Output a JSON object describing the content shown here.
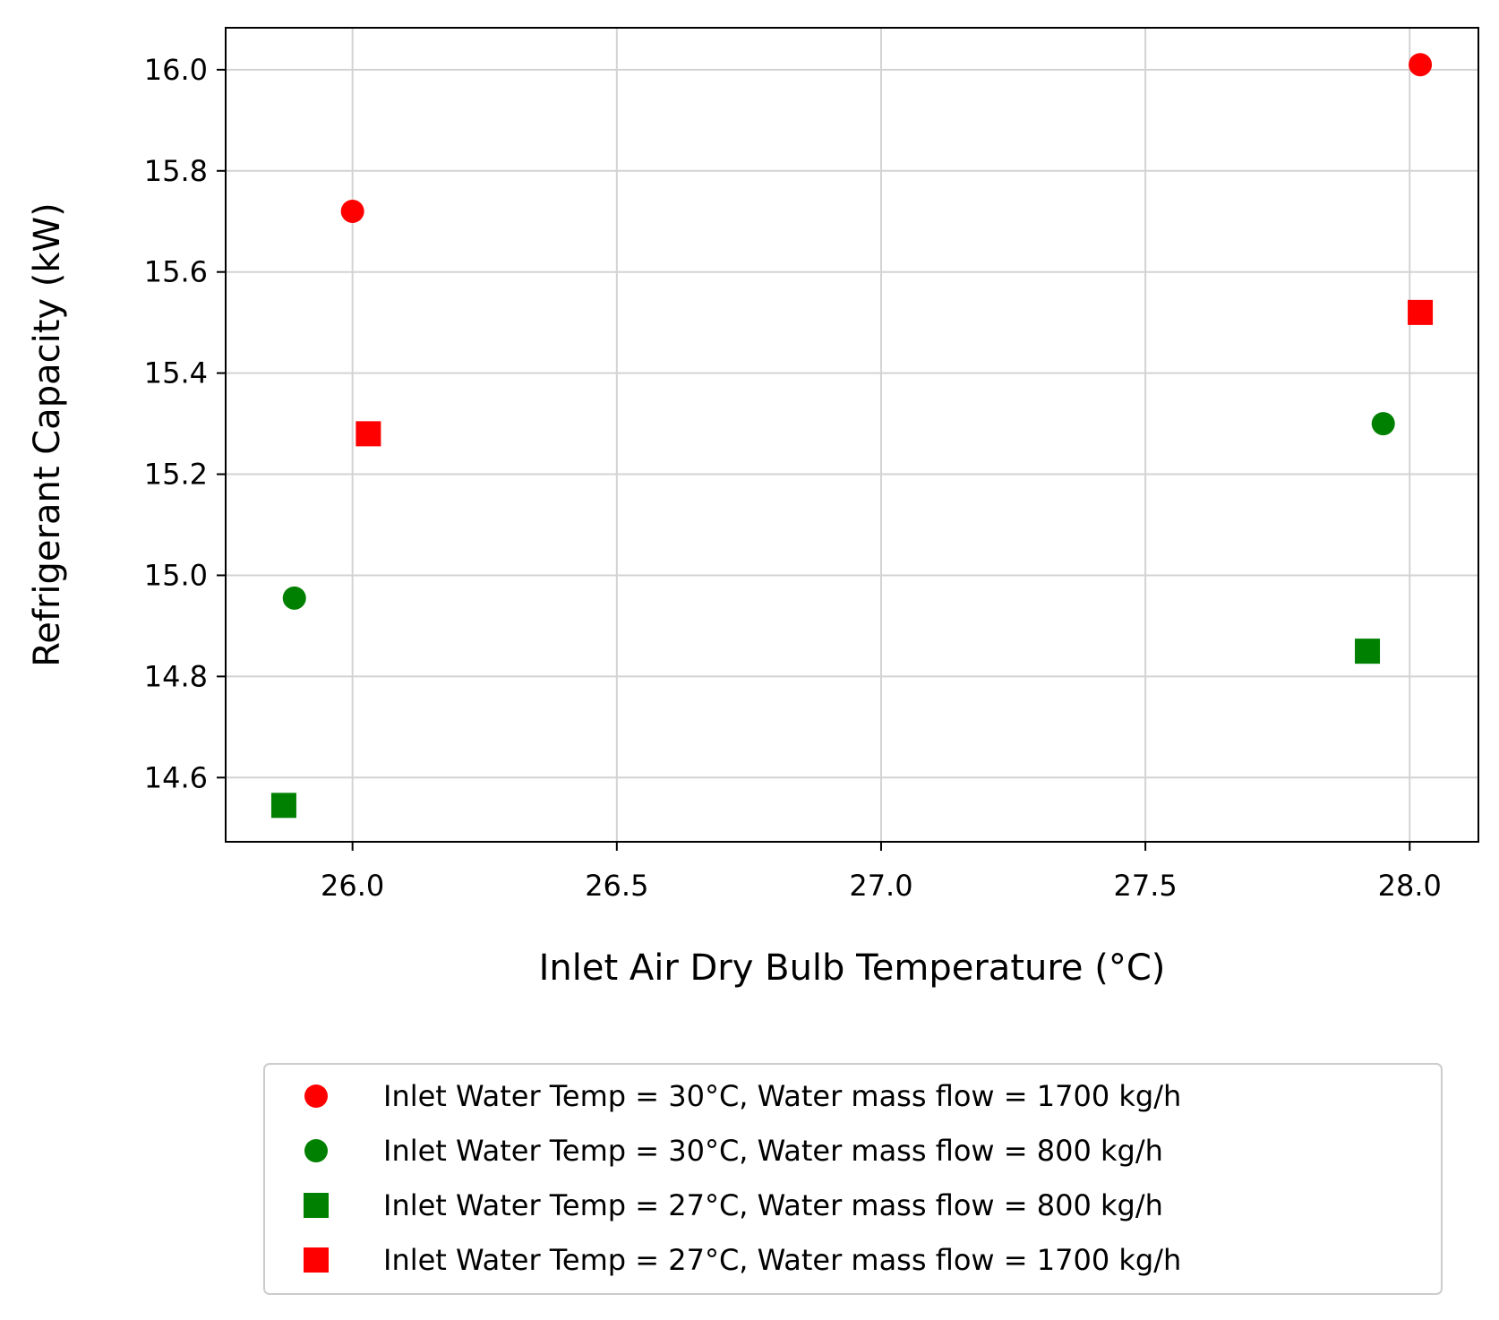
{
  "chart_data": {
    "type": "scatter",
    "title": "",
    "xlabel": "Inlet Air Dry Bulb Temperature (°C)",
    "ylabel": "Refrigerant Capacity (kW)",
    "xlim": [
      25.76,
      28.13
    ],
    "ylim": [
      14.473,
      16.083
    ],
    "xticks": [
      26.0,
      26.5,
      27.0,
      27.5,
      28.0
    ],
    "xtick_labels": [
      "26.0",
      "26.5",
      "27.0",
      "27.5",
      "28.0"
    ],
    "yticks": [
      14.6,
      14.8,
      15.0,
      15.2,
      15.4,
      15.6,
      15.8,
      16.0
    ],
    "ytick_labels": [
      "14.6",
      "14.8",
      "15.0",
      "15.2",
      "15.4",
      "15.6",
      "15.8",
      "16.0"
    ],
    "grid": true,
    "legend_position": "below plot",
    "series": [
      {
        "name": "Inlet Water Temp = 30°C, Water mass flow = 1700 kg/h",
        "marker": "circle",
        "color": "#ff0000",
        "points": [
          {
            "x": 26.0,
            "y": 15.72
          },
          {
            "x": 28.02,
            "y": 16.01
          }
        ]
      },
      {
        "name": "Inlet Water Temp = 30°C, Water mass flow = 800 kg/h",
        "marker": "circle",
        "color": "#008000",
        "points": [
          {
            "x": 25.89,
            "y": 14.955
          },
          {
            "x": 27.95,
            "y": 15.3
          }
        ]
      },
      {
        "name": "Inlet Water Temp = 27°C, Water mass flow = 800 kg/h",
        "marker": "square",
        "color": "#008000",
        "points": [
          {
            "x": 25.87,
            "y": 14.545
          },
          {
            "x": 27.92,
            "y": 14.85
          }
        ]
      },
      {
        "name": "Inlet Water Temp = 27°C, Water mass flow = 1700 kg/h",
        "marker": "square",
        "color": "#ff0000",
        "points": [
          {
            "x": 26.03,
            "y": 15.28
          },
          {
            "x": 28.02,
            "y": 15.52
          }
        ]
      }
    ]
  }
}
